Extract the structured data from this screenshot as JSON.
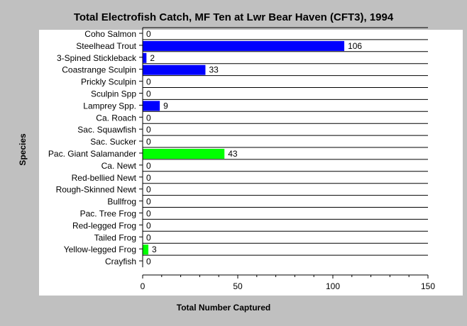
{
  "chart_data": {
    "type": "bar",
    "orientation": "horizontal",
    "title": "Total Electrofish Catch, MF Ten at Lwr Bear Haven (CFT3), 1994",
    "xlabel": "Total Number Captured",
    "ylabel": "Species",
    "xlim": [
      0,
      150
    ],
    "xticks": [
      0,
      50,
      100,
      150
    ],
    "grid": "horizontal lines at each category",
    "legend": "none",
    "colors": {
      "fish": "#0000ff",
      "amphibian": "#00ff00",
      "plot_bg": "#ffffff",
      "page_bg": "#c0c0c0"
    },
    "categories": [
      "Coho Salmon",
      "Steelhead Trout",
      "3-Spined Stickleback",
      "Coastrange Sculpin",
      "Prickly Sculpin",
      "Sculpin Spp",
      "Lamprey Spp.",
      "Ca. Roach",
      "Sac. Squawfish",
      "Sac. Sucker",
      "Pac. Giant Salamander",
      "Ca. Newt",
      "Red-bellied Newt",
      "Rough-Skinned Newt",
      "Bullfrog",
      "Pac. Tree Frog",
      "Red-legged Frog",
      "Tailed Frog",
      "Yellow-legged Frog",
      "Crayfish"
    ],
    "values": [
      0,
      106,
      2,
      33,
      0,
      0,
      9,
      0,
      0,
      0,
      43,
      0,
      0,
      0,
      0,
      0,
      0,
      0,
      3,
      0
    ],
    "bar_colors": [
      "#0000ff",
      "#0000ff",
      "#0000ff",
      "#0000ff",
      "#0000ff",
      "#0000ff",
      "#0000ff",
      "#0000ff",
      "#0000ff",
      "#0000ff",
      "#00ff00",
      "#00ff00",
      "#00ff00",
      "#00ff00",
      "#00ff00",
      "#00ff00",
      "#00ff00",
      "#00ff00",
      "#00ff00",
      "#0000ff"
    ]
  }
}
